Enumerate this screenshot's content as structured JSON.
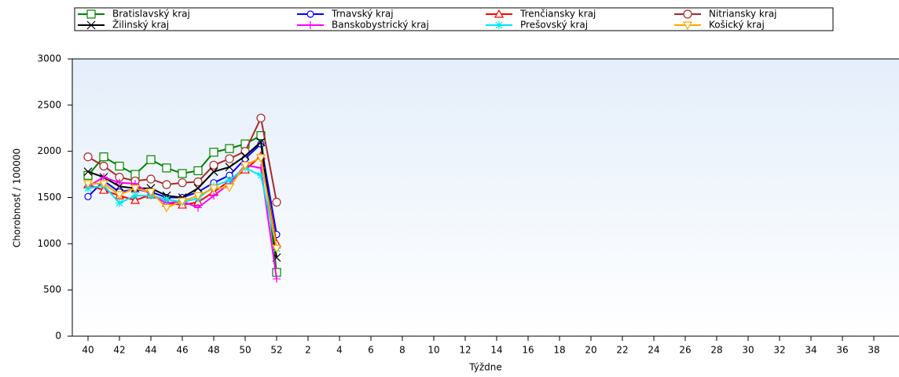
{
  "chart_data": {
    "type": "line",
    "y_label": "Chorobnosť / 100000",
    "x_label": "Týždne",
    "categories": [
      40,
      null,
      42,
      null,
      44,
      null,
      46,
      null,
      48,
      null,
      50,
      null,
      52,
      null,
      2,
      null,
      4,
      null,
      6,
      null,
      8,
      null,
      10,
      null,
      12,
      null,
      14,
      null,
      16,
      null,
      18,
      null,
      20,
      null,
      22,
      null,
      24,
      null,
      26,
      null,
      28,
      null,
      30,
      null,
      32,
      null,
      34,
      null,
      36,
      null,
      38,
      null
    ],
    "ylim": [
      0,
      3000
    ],
    "yticks": [
      0,
      500,
      1000,
      1500,
      2000,
      2500,
      3000
    ],
    "series": [
      {
        "name": "Bratislavský kraj",
        "color": "#008000",
        "marker": "square",
        "values": [
          1740,
          1940,
          1840,
          1750,
          1910,
          1820,
          1760,
          1790,
          1990,
          2030,
          2080,
          2170,
          690,
          null,
          null,
          null,
          null,
          null,
          null,
          null,
          null,
          null,
          null,
          null,
          null,
          null,
          null,
          null,
          null,
          null,
          null,
          null,
          null,
          null,
          null,
          null,
          null,
          null,
          null,
          null,
          null,
          null,
          null,
          null,
          null,
          null,
          null,
          null,
          null,
          null,
          null,
          null
        ]
      },
      {
        "name": "Trnavský kraj",
        "color": "#0000ff",
        "marker": "diamond",
        "values": [
          1510,
          1680,
          1560,
          1590,
          1560,
          1500,
          1500,
          1560,
          1660,
          1740,
          1920,
          2080,
          1100,
          null,
          null,
          null,
          null,
          null,
          null,
          null,
          null,
          null,
          null,
          null,
          null,
          null,
          null,
          null,
          null,
          null,
          null,
          null,
          null,
          null,
          null,
          null,
          null,
          null,
          null,
          null,
          null,
          null,
          null,
          null,
          null,
          null,
          null,
          null,
          null,
          null,
          null,
          null
        ]
      },
      {
        "name": "Trenčiansky kraj",
        "color": "#ff0000",
        "marker": "triangle-up",
        "values": [
          1640,
          1580,
          1520,
          1470,
          1530,
          1440,
          1420,
          1450,
          1560,
          1680,
          1800,
          1950,
          1000,
          null,
          null,
          null,
          null,
          null,
          null,
          null,
          null,
          null,
          null,
          null,
          null,
          null,
          null,
          null,
          null,
          null,
          null,
          null,
          null,
          null,
          null,
          null,
          null,
          null,
          null,
          null,
          null,
          null,
          null,
          null,
          null,
          null,
          null,
          null,
          null,
          null,
          null,
          null
        ]
      },
      {
        "name": "Nitriansky kraj",
        "color": "#a52a2a",
        "marker": "circle",
        "values": [
          1940,
          1840,
          1720,
          1680,
          1700,
          1640,
          1660,
          1670,
          1850,
          1920,
          2000,
          2360,
          1450,
          null,
          null,
          null,
          null,
          null,
          null,
          null,
          null,
          null,
          null,
          null,
          null,
          null,
          null,
          null,
          null,
          null,
          null,
          null,
          null,
          null,
          null,
          null,
          null,
          null,
          null,
          null,
          null,
          null,
          null,
          null,
          null,
          null,
          null,
          null,
          null,
          null,
          null,
          null
        ]
      },
      {
        "name": "Žilinský kraj",
        "color": "#000000",
        "marker": "x",
        "values": [
          1780,
          1720,
          1620,
          1600,
          1600,
          1520,
          1500,
          1600,
          1780,
          1830,
          1950,
          2100,
          850,
          null,
          null,
          null,
          null,
          null,
          null,
          null,
          null,
          null,
          null,
          null,
          null,
          null,
          null,
          null,
          null,
          null,
          null,
          null,
          null,
          null,
          null,
          null,
          null,
          null,
          null,
          null,
          null,
          null,
          null,
          null,
          null,
          null,
          null,
          null,
          null,
          null,
          null,
          null
        ]
      },
      {
        "name": "Banskobystrický kraj",
        "color": "#ff00ff",
        "marker": "plus",
        "values": [
          1620,
          1720,
          1660,
          1650,
          1530,
          1440,
          1460,
          1390,
          1520,
          1650,
          1850,
          1820,
          620,
          null,
          null,
          null,
          null,
          null,
          null,
          null,
          null,
          null,
          null,
          null,
          null,
          null,
          null,
          null,
          null,
          null,
          null,
          null,
          null,
          null,
          null,
          null,
          null,
          null,
          null,
          null,
          null,
          null,
          null,
          null,
          null,
          null,
          null,
          null,
          null,
          null,
          null,
          null
        ]
      },
      {
        "name": "Prešovský kraj",
        "color": "#00e5ee",
        "marker": "asterisk",
        "values": [
          1600,
          1630,
          1440,
          1520,
          1520,
          1480,
          1450,
          1490,
          1620,
          1690,
          1820,
          1740,
          950,
          null,
          null,
          null,
          null,
          null,
          null,
          null,
          null,
          null,
          null,
          null,
          null,
          null,
          null,
          null,
          null,
          null,
          null,
          null,
          null,
          null,
          null,
          null,
          null,
          null,
          null,
          null,
          null,
          null,
          null,
          null,
          null,
          null,
          null,
          null,
          null,
          null,
          null,
          null
        ]
      },
      {
        "name": "Košický kraj",
        "color": "#ffa500",
        "marker": "triangle-down",
        "values": [
          1650,
          1650,
          1530,
          1600,
          1560,
          1390,
          1460,
          1520,
          1600,
          1610,
          1850,
          1930,
          950,
          null,
          null,
          null,
          null,
          null,
          null,
          null,
          null,
          null,
          null,
          null,
          null,
          null,
          null,
          null,
          null,
          null,
          null,
          null,
          null,
          null,
          null,
          null,
          null,
          null,
          null,
          null,
          null,
          null,
          null,
          null,
          null,
          null,
          null,
          null,
          null,
          null,
          null,
          null
        ]
      }
    ]
  }
}
